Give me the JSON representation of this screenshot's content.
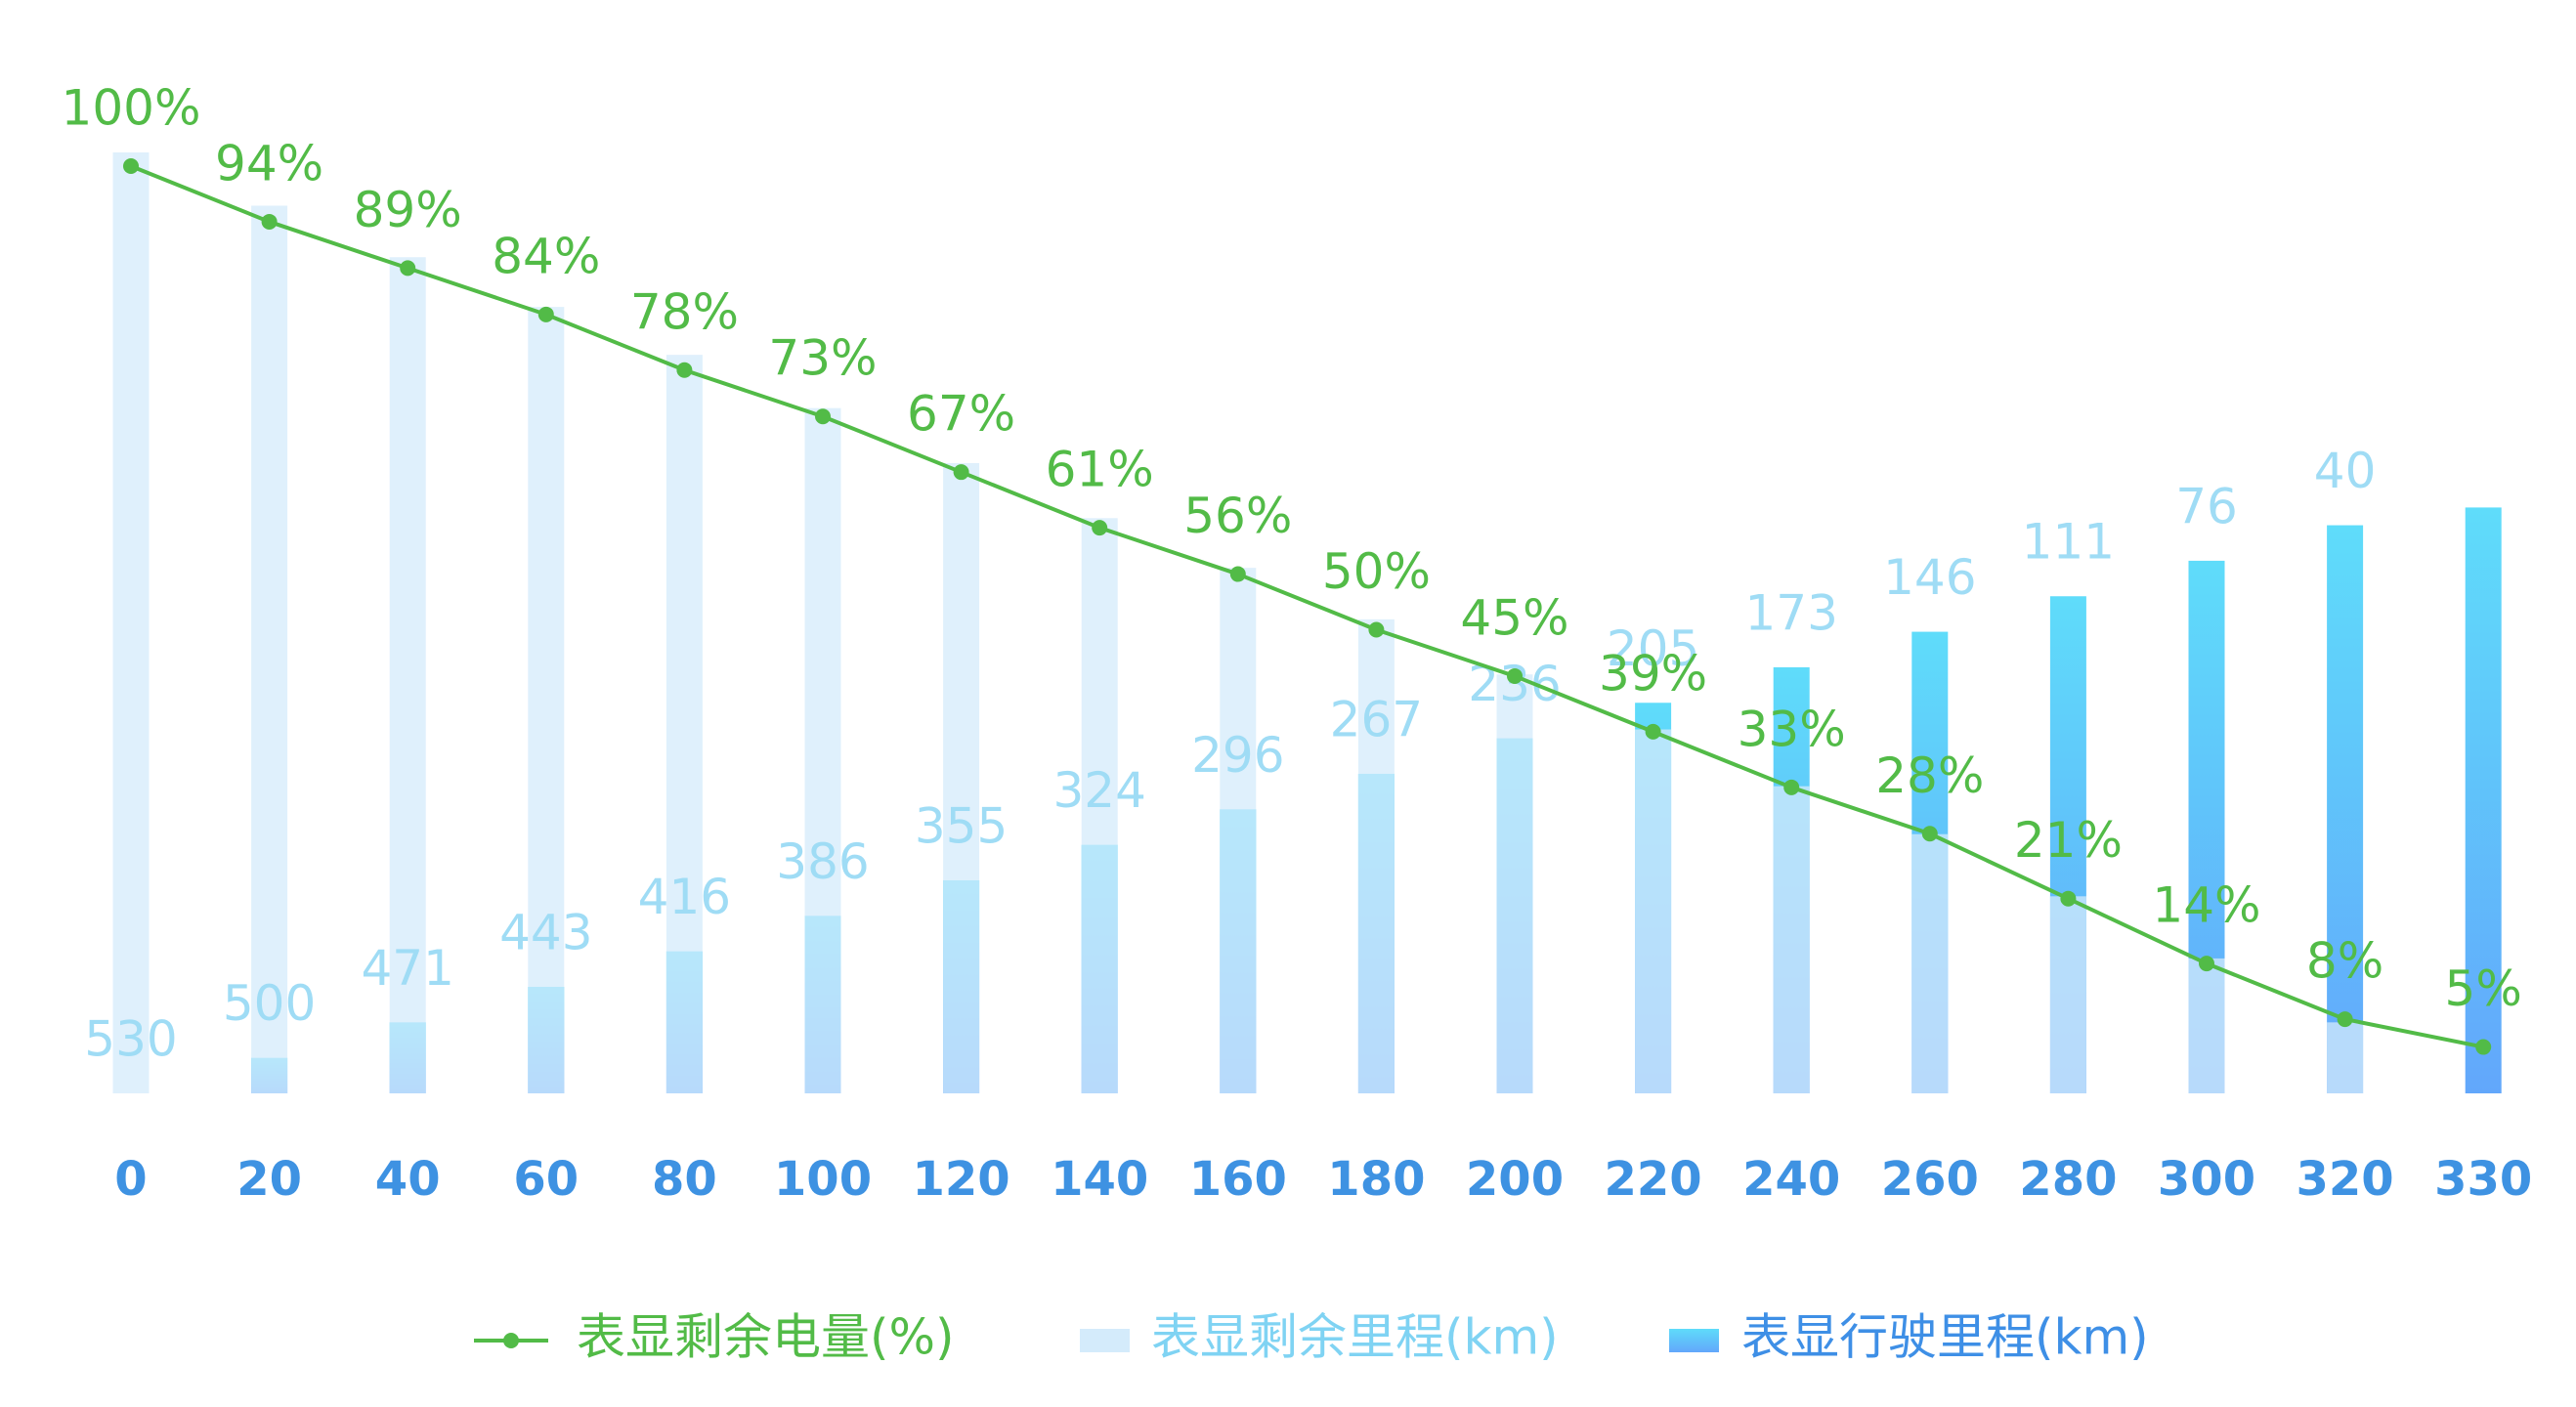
{
  "chart_data": {
    "type": "bar-line",
    "categories": [
      "0",
      "20",
      "40",
      "60",
      "80",
      "100",
      "120",
      "140",
      "160",
      "180",
      "200",
      "220",
      "240",
      "260",
      "280",
      "300",
      "320",
      "330"
    ],
    "series": [
      {
        "name": "表显剩余电量(%)",
        "type": "line",
        "color": "#52bb47",
        "values": [
          100,
          94,
          89,
          84,
          78,
          73,
          67,
          61,
          56,
          50,
          45,
          39,
          33,
          28,
          21,
          14,
          8,
          5
        ],
        "value_labels": [
          "100%",
          "94%",
          "89%",
          "84%",
          "78%",
          "73%",
          "67%",
          "61%",
          "56%",
          "50%",
          "45%",
          "39%",
          "33%",
          "28%",
          "21%",
          "14%",
          "8%",
          "5%"
        ]
      },
      {
        "name": "表显剩余里程(km)",
        "type": "bar",
        "color": "#d4ebfb",
        "values": [
          530,
          500,
          471,
          443,
          416,
          386,
          355,
          324,
          296,
          267,
          236,
          205,
          173,
          146,
          111,
          76,
          40,
          null
        ]
      },
      {
        "name": "表显行驶里程(km)",
        "type": "bar",
        "color": "#5ea8fb",
        "values": [
          0,
          20,
          40,
          60,
          80,
          100,
          120,
          140,
          160,
          180,
          200,
          220,
          240,
          260,
          280,
          300,
          320,
          330
        ]
      }
    ]
  }
}
